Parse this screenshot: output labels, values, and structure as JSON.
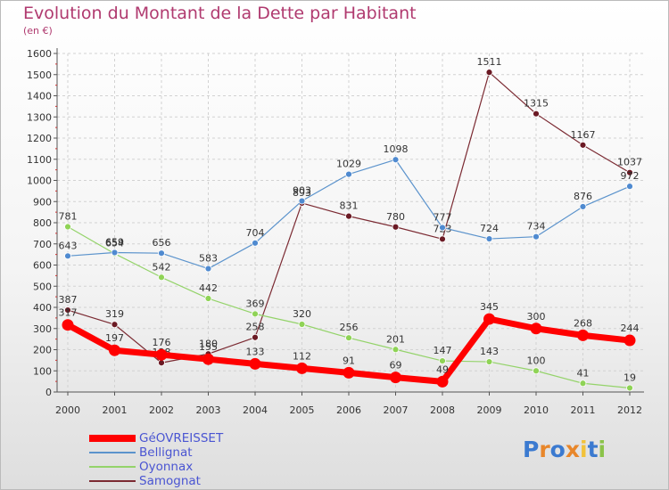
{
  "chart_data": {
    "type": "line",
    "title": "Evolution du Montant de la Dette par Habitant",
    "subtitle": "(en €)",
    "xlabel": "",
    "ylabel": "",
    "categories": [
      "2000",
      "2001",
      "2002",
      "2003",
      "2004",
      "2005",
      "2006",
      "2007",
      "2008",
      "2009",
      "2010",
      "2011",
      "2012"
    ],
    "ylim": [
      0,
      1600
    ],
    "yticks": [
      0,
      100,
      200,
      300,
      400,
      500,
      600,
      700,
      800,
      900,
      1000,
      1100,
      1200,
      1300,
      1400,
      1500,
      1600
    ],
    "grid": true,
    "legend_position": "bottom-left",
    "series": [
      {
        "name": "Samognat",
        "color": "#7b2a32",
        "point_color": "#6b1a24",
        "values": [
          387,
          319,
          138,
          180,
          258,
          893,
          831,
          780,
          723,
          1511,
          1315,
          1167,
          1037
        ]
      },
      {
        "name": "Oyonnax",
        "color": "#94d36a",
        "point_color": "#8fd356",
        "values": [
          781,
          654,
          542,
          442,
          369,
          320,
          256,
          201,
          147,
          143,
          100,
          41,
          19
        ]
      },
      {
        "name": "Bellignat",
        "color": "#5b93cc",
        "point_color": "#4f8ad0",
        "values": [
          643,
          659,
          656,
          583,
          704,
          903,
          1029,
          1098,
          777,
          724,
          734,
          876,
          972
        ]
      },
      {
        "name": "GéOVREISSET",
        "color": "#ff0000",
        "point_color": "#ff0000",
        "values": [
          317,
          197,
          176,
          155,
          133,
          112,
          91,
          69,
          49,
          345,
          300,
          268,
          244
        ]
      }
    ],
    "legend_order": [
      "GéOVREISSET",
      "Bellignat",
      "Oyonnax",
      "Samognat"
    ]
  },
  "legend": {
    "items": [
      {
        "label": "GéOVREISSET",
        "color": "#ff0000"
      },
      {
        "label": "Bellignat",
        "color": "#5b93cc"
      },
      {
        "label": "Oyonnax",
        "color": "#94d36a"
      },
      {
        "label": "Samognat",
        "color": "#7b2a32"
      }
    ]
  },
  "brand": {
    "letters": [
      "P",
      "r",
      "o",
      "x",
      "i",
      "t",
      "i"
    ],
    "colors": [
      "#3b7ad0",
      "#e8862a",
      "#3b7ad0",
      "#e8862a",
      "#f2c23a",
      "#3b7ad0",
      "#8bc34a"
    ]
  }
}
